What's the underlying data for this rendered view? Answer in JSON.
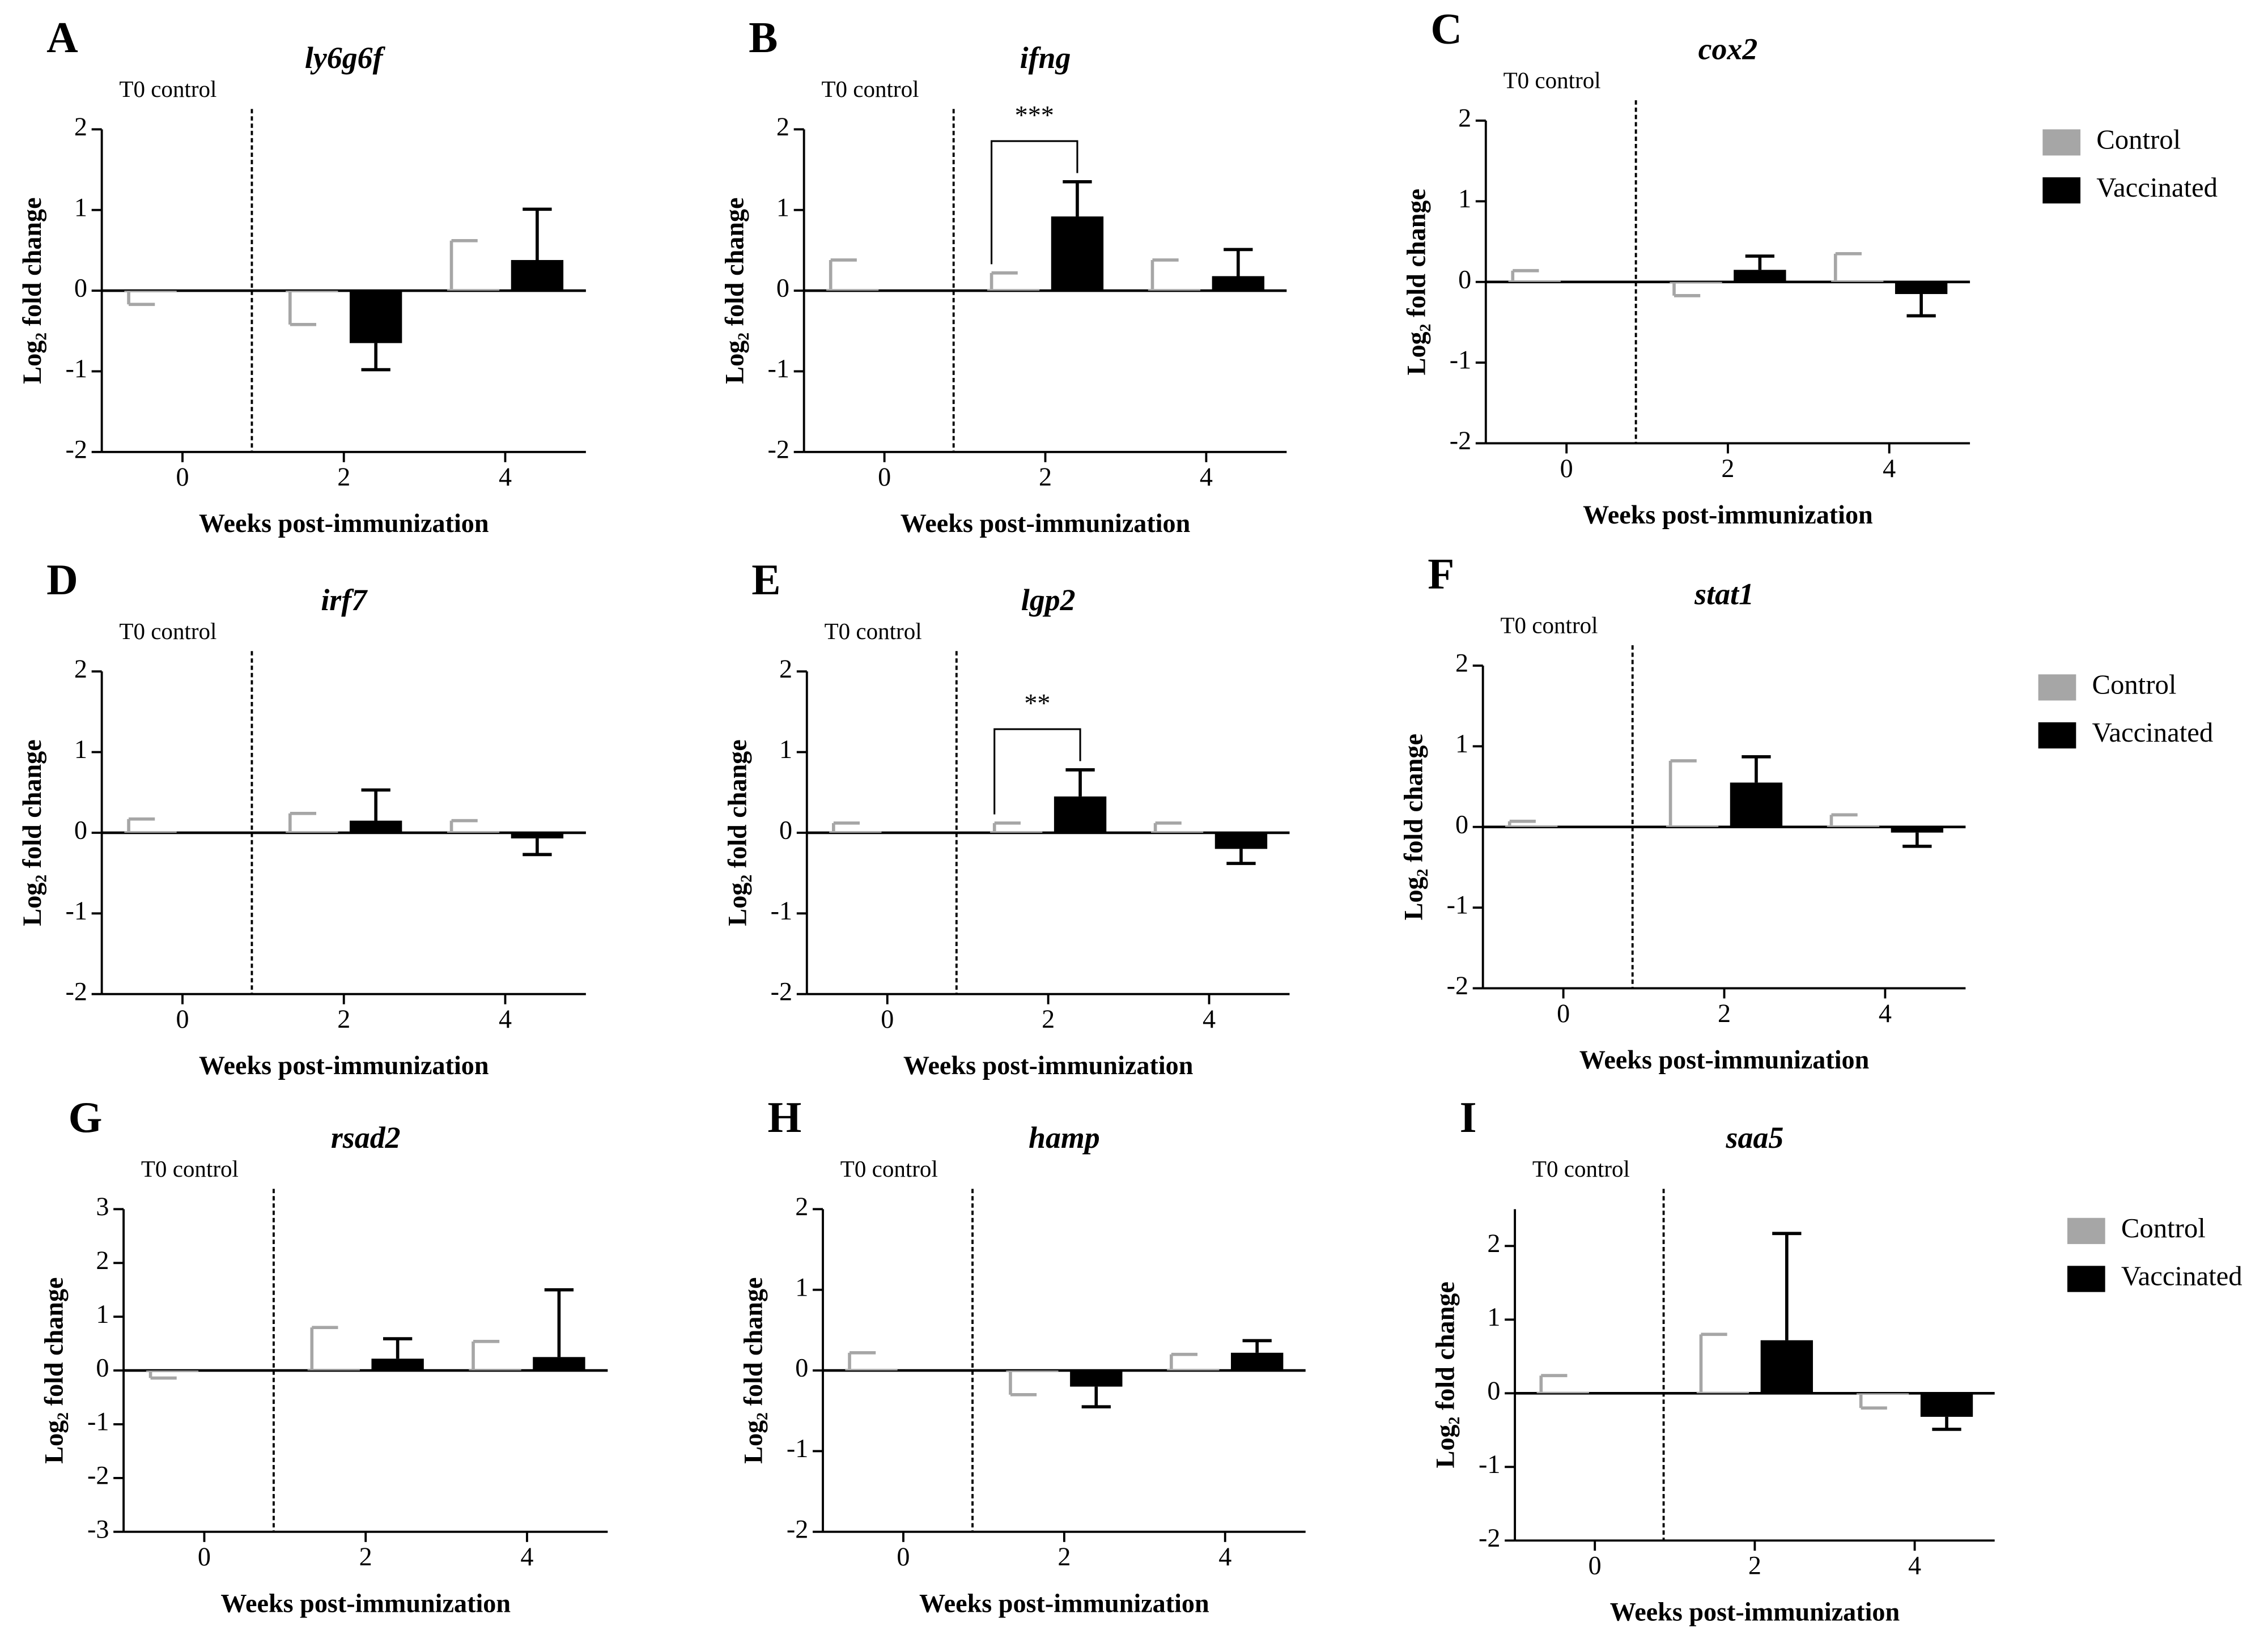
{
  "chart_data": [
    {
      "type": "bar",
      "panel": "A",
      "title": "ly6g6f",
      "annotation": "T0 control",
      "xlabel": "Weeks post-immunization",
      "ylabel": "Log₂ fold change",
      "categories": [
        "0",
        "2",
        "4"
      ],
      "ylim": [
        -2,
        2
      ],
      "yticks": [
        -2,
        -1,
        0,
        1,
        2
      ],
      "series": [
        {
          "name": "Control",
          "color": "#a6a6a6",
          "values": [
            -0.02,
            -0.02,
            0.02
          ],
          "errors": [
            0.15,
            0.4,
            0.6
          ]
        },
        {
          "name": "Vaccinated",
          "color": "#000000",
          "values": [
            null,
            -0.65,
            0.38
          ],
          "errors": [
            null,
            0.33,
            0.63
          ]
        }
      ]
    },
    {
      "type": "bar",
      "panel": "B",
      "title": "ifng",
      "annotation": "T0 control",
      "xlabel": "Weeks post-immunization",
      "ylabel": "Log₂ fold change",
      "categories": [
        "0",
        "2",
        "4"
      ],
      "ylim": [
        -2,
        2
      ],
      "yticks": [
        -2,
        -1,
        0,
        1,
        2
      ],
      "significance": "***",
      "series": [
        {
          "name": "Control",
          "color": "#a6a6a6",
          "values": [
            0.02,
            0.02,
            0.02
          ],
          "errors": [
            0.36,
            0.2,
            0.36
          ]
        },
        {
          "name": "Vaccinated",
          "color": "#000000",
          "values": [
            null,
            0.92,
            0.18
          ],
          "errors": [
            null,
            0.43,
            0.33
          ]
        }
      ]
    },
    {
      "type": "bar",
      "panel": "C",
      "title": "cox2",
      "annotation": "T0 control",
      "xlabel": "Weeks post-immunization",
      "ylabel": "Log₂ fold change",
      "categories": [
        "0",
        "2",
        "4"
      ],
      "ylim": [
        -2,
        2
      ],
      "yticks": [
        -2,
        -1,
        0,
        1,
        2
      ],
      "legend": "right",
      "series": [
        {
          "name": "Control",
          "color": "#a6a6a6",
          "values": [
            0.02,
            -0.02,
            0.02
          ],
          "errors": [
            0.12,
            0.15,
            0.33
          ]
        },
        {
          "name": "Vaccinated",
          "color": "#000000",
          "values": [
            null,
            0.15,
            -0.15
          ],
          "errors": [
            null,
            0.17,
            0.27
          ]
        }
      ]
    },
    {
      "type": "bar",
      "panel": "D",
      "title": "irf7",
      "annotation": "T0 control",
      "xlabel": "Weeks post-immunization",
      "ylabel": "Log₂ fold change",
      "categories": [
        "0",
        "2",
        "4"
      ],
      "ylim": [
        -2,
        2
      ],
      "yticks": [
        -2,
        -1,
        0,
        1,
        2
      ],
      "series": [
        {
          "name": "Control",
          "color": "#a6a6a6",
          "values": [
            0.02,
            0.02,
            0.02
          ],
          "errors": [
            0.15,
            0.22,
            0.13
          ]
        },
        {
          "name": "Vaccinated",
          "color": "#000000",
          "values": [
            null,
            0.15,
            -0.07
          ],
          "errors": [
            null,
            0.38,
            0.2
          ]
        }
      ]
    },
    {
      "type": "bar",
      "panel": "E",
      "title": "lgp2",
      "annotation": "T0 control",
      "xlabel": "Weeks post-immunization",
      "ylabel": "Log₂ fold change",
      "categories": [
        "0",
        "2",
        "4"
      ],
      "ylim": [
        -2,
        2
      ],
      "yticks": [
        -2,
        -1,
        0,
        1,
        2
      ],
      "significance": "**",
      "series": [
        {
          "name": "Control",
          "color": "#a6a6a6",
          "values": [
            0.02,
            0.02,
            0.02
          ],
          "errors": [
            0.1,
            0.1,
            0.1
          ]
        },
        {
          "name": "Vaccinated",
          "color": "#000000",
          "values": [
            null,
            0.45,
            -0.2
          ],
          "errors": [
            null,
            0.33,
            0.18
          ]
        }
      ]
    },
    {
      "type": "bar",
      "panel": "F",
      "title": "stat1",
      "annotation": "T0 control",
      "xlabel": "Weeks post-immunization",
      "ylabel": "Log₂ fold change",
      "categories": [
        "0",
        "2",
        "4"
      ],
      "ylim": [
        -2,
        2
      ],
      "yticks": [
        -2,
        -1,
        0,
        1,
        2
      ],
      "legend": "right",
      "series": [
        {
          "name": "Control",
          "color": "#a6a6a6",
          "values": [
            0.02,
            0.02,
            0.02
          ],
          "errors": [
            0.05,
            0.8,
            0.13
          ]
        },
        {
          "name": "Vaccinated",
          "color": "#000000",
          "values": [
            null,
            0.55,
            -0.07
          ],
          "errors": [
            null,
            0.32,
            0.17
          ]
        }
      ]
    },
    {
      "type": "bar",
      "panel": "G",
      "title": "rsad2",
      "annotation": "T0 control",
      "xlabel": "Weeks post-immunization",
      "ylabel": "Log₂ fold change",
      "categories": [
        "0",
        "2",
        "4"
      ],
      "ylim": [
        -3,
        3
      ],
      "yticks": [
        -3,
        -2,
        -1,
        0,
        1,
        2,
        3
      ],
      "series": [
        {
          "name": "Control",
          "color": "#a6a6a6",
          "values": [
            -0.02,
            0.02,
            0.02
          ],
          "errors": [
            0.12,
            0.78,
            0.52
          ]
        },
        {
          "name": "Vaccinated",
          "color": "#000000",
          "values": [
            null,
            0.22,
            0.25
          ],
          "errors": [
            null,
            0.37,
            1.25
          ]
        }
      ]
    },
    {
      "type": "bar",
      "panel": "H",
      "title": "hamp",
      "annotation": "T0 control",
      "xlabel": "Weeks post-immunization",
      "ylabel": "Log₂ fold change",
      "categories": [
        "0",
        "2",
        "4"
      ],
      "ylim": [
        -2,
        2
      ],
      "yticks": [
        -2,
        -1,
        0,
        1,
        2
      ],
      "series": [
        {
          "name": "Control",
          "color": "#a6a6a6",
          "values": [
            0.02,
            -0.02,
            0.02
          ],
          "errors": [
            0.2,
            0.28,
            0.18
          ]
        },
        {
          "name": "Vaccinated",
          "color": "#000000",
          "values": [
            null,
            -0.2,
            0.22
          ],
          "errors": [
            null,
            0.25,
            0.15
          ]
        }
      ]
    },
    {
      "type": "bar",
      "panel": "I",
      "title": "saa5",
      "annotation": "T0 control",
      "xlabel": "Weeks post-immunization",
      "ylabel": "Log₂ fold change",
      "categories": [
        "0",
        "2",
        "4"
      ],
      "ylim": [
        -2,
        2.5
      ],
      "yticks": [
        -2,
        -1,
        0,
        1,
        2
      ],
      "legend": "right",
      "series": [
        {
          "name": "Control",
          "color": "#a6a6a6",
          "values": [
            0.02,
            0.02,
            -0.02
          ],
          "errors": [
            0.22,
            0.78,
            0.18
          ]
        },
        {
          "name": "Vaccinated",
          "color": "#000000",
          "values": [
            null,
            0.72,
            -0.32
          ],
          "errors": [
            null,
            1.45,
            0.17
          ]
        }
      ]
    }
  ]
}
